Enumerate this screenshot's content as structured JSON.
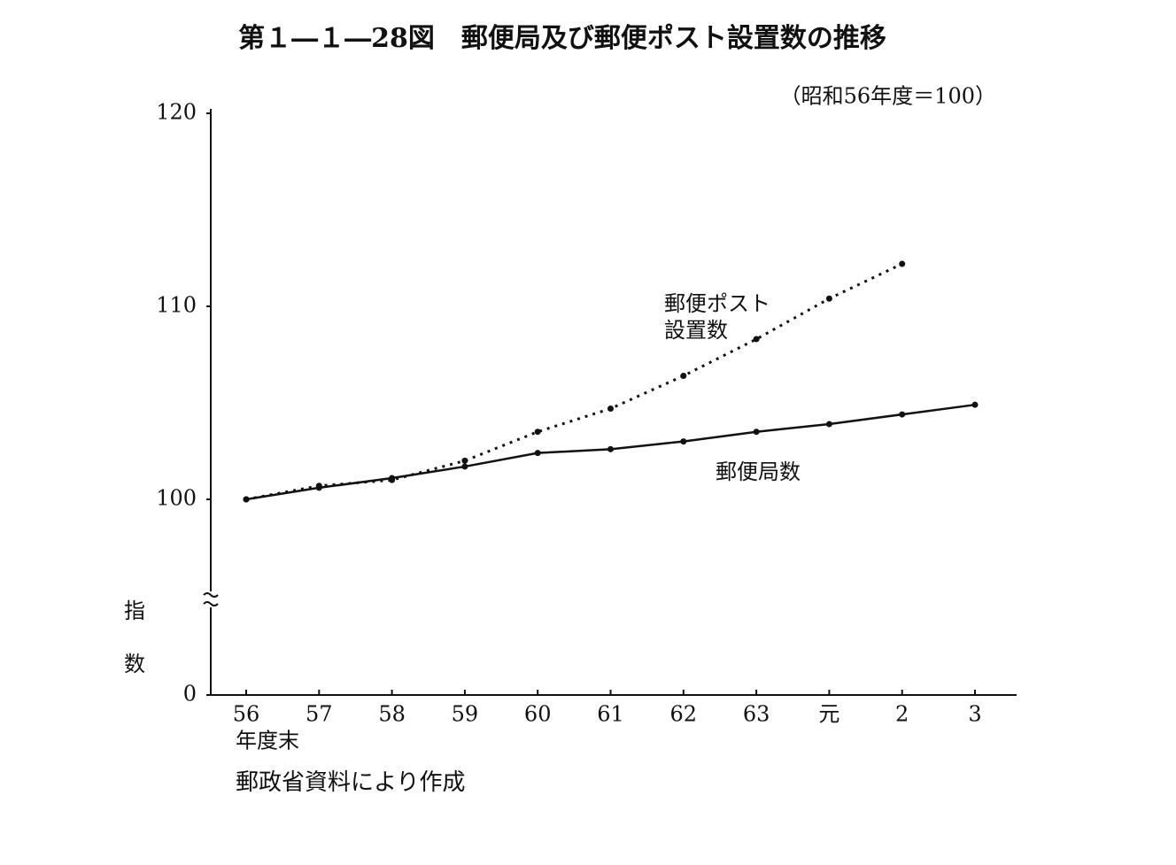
{
  "chart_data": {
    "type": "line",
    "title": "第１―１―28図　郵便局及び郵便ポスト設置数の推移",
    "subtitle": "（昭和56年度＝100）",
    "y_label": "指数",
    "x_label": "年度末",
    "source": "郵政省資料により作成",
    "categories": [
      "56",
      "57",
      "58",
      "59",
      "60",
      "61",
      "62",
      "63",
      "元",
      "2",
      "3"
    ],
    "series": [
      {
        "name": "郵便局数",
        "color": "#111111",
        "style": "solid",
        "values": [
          100,
          100.6,
          101.1,
          101.7,
          102.4,
          102.6,
          103.0,
          103.5,
          103.9,
          104.4,
          104.9
        ]
      },
      {
        "name": "郵便ポスト設置数",
        "color": "#111111",
        "style": "dotted",
        "values": [
          100,
          100.7,
          101.0,
          102.0,
          103.5,
          104.7,
          106.4,
          108.3,
          110.4,
          112.2,
          null
        ]
      }
    ],
    "ylim": [
      0,
      120
    ],
    "y_break": [
      0,
      100
    ],
    "yticks": [
      0,
      100,
      110,
      120
    ]
  }
}
